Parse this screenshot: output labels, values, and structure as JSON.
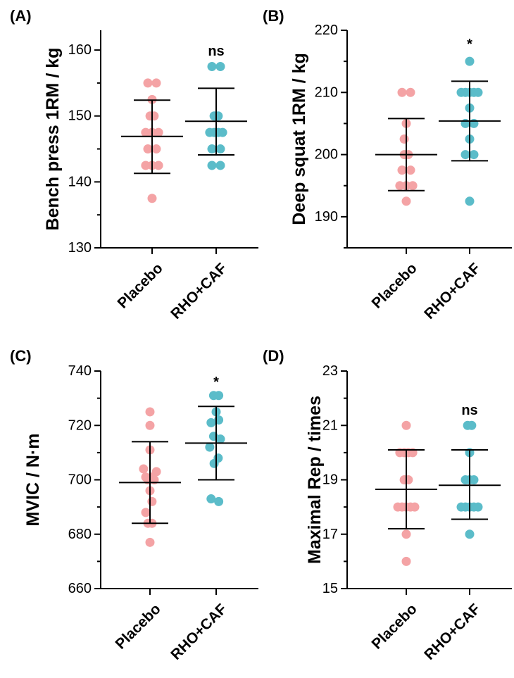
{
  "colors": {
    "placebo": "#F4A3A5",
    "rho_caf": "#5BBCC9",
    "axis": "#000000"
  },
  "chart_data": [
    {
      "id": "A",
      "type": "scatter",
      "panel_label": "(A)",
      "ylabel": "Bench press 1RM / kg",
      "ylim": [
        130,
        163
      ],
      "yticks": [
        130,
        140,
        150,
        160
      ],
      "categories": [
        "Placebo",
        "RHO+CAF"
      ],
      "significance": "ns",
      "series": [
        {
          "name": "Placebo",
          "mean": 146.9,
          "sd_low": 141.3,
          "sd_high": 152.4,
          "points": [
            [
              -0.25,
              155
            ],
            [
              0.25,
              155
            ],
            [
              0,
              152.5
            ],
            [
              -0.12,
              150
            ],
            [
              0.12,
              150
            ],
            [
              -0.38,
              147.5
            ],
            [
              0,
              147.5
            ],
            [
              0.38,
              147.5
            ],
            [
              -0.25,
              145
            ],
            [
              0.25,
              145
            ],
            [
              -0.38,
              142.5
            ],
            [
              0,
              142.5
            ],
            [
              0.38,
              142.5
            ],
            [
              0,
              137.5
            ]
          ]
        },
        {
          "name": "RHO+CAF",
          "mean": 149.2,
          "sd_low": 144.1,
          "sd_high": 154.2,
          "points": [
            [
              -0.25,
              157.5
            ],
            [
              0.25,
              157.5
            ],
            [
              0,
              150
            ],
            [
              -0.12,
              150
            ],
            [
              0.12,
              150
            ],
            [
              -0.38,
              147.5
            ],
            [
              -0.12,
              147.5
            ],
            [
              0.12,
              147.5
            ],
            [
              0.38,
              147.5
            ],
            [
              -0.25,
              145
            ],
            [
              0.25,
              145
            ],
            [
              -0.25,
              142.5
            ],
            [
              0.25,
              142.5
            ]
          ]
        }
      ]
    },
    {
      "id": "B",
      "type": "scatter",
      "panel_label": "(B)",
      "ylabel": "Deep squat 1RM / kg",
      "ylim": [
        185,
        220
      ],
      "yticks": [
        190,
        200,
        210,
        220
      ],
      "categories": [
        "Placebo",
        "RHO+CAF"
      ],
      "significance": "*",
      "series": [
        {
          "name": "Placebo",
          "mean": 200,
          "sd_low": 194.2,
          "sd_high": 205.8,
          "points": [
            [
              -0.25,
              210
            ],
            [
              0.25,
              210
            ],
            [
              0,
              205
            ],
            [
              -0.12,
              202.5
            ],
            [
              0.12,
              200
            ],
            [
              -0.12,
              200
            ],
            [
              -0.25,
              197.5
            ],
            [
              0.25,
              197.5
            ],
            [
              -0.38,
              195
            ],
            [
              0,
              195
            ],
            [
              0.38,
              195
            ],
            [
              0,
              192.5
            ]
          ]
        },
        {
          "name": "RHO+CAF",
          "mean": 205.4,
          "sd_low": 199,
          "sd_high": 211.8,
          "points": [
            [
              0,
              215
            ],
            [
              -0.5,
              210
            ],
            [
              -0.25,
              210
            ],
            [
              0,
              210
            ],
            [
              0.25,
              210
            ],
            [
              0.5,
              210
            ],
            [
              -0.25,
              205
            ],
            [
              0.25,
              205
            ],
            [
              0,
              207.5
            ],
            [
              0,
              202.5
            ],
            [
              -0.25,
              200
            ],
            [
              0.25,
              200
            ],
            [
              0,
              192.5
            ]
          ]
        }
      ]
    },
    {
      "id": "C",
      "type": "scatter",
      "panel_label": "(C)",
      "ylabel": "MVIC / N·m",
      "ylim": [
        660,
        740
      ],
      "yticks": [
        660,
        680,
        700,
        720,
        740
      ],
      "categories": [
        "Placebo",
        "RHO+CAF"
      ],
      "significance": "*",
      "series": [
        {
          "name": "Placebo",
          "mean": 699,
          "sd_low": 684,
          "sd_high": 714,
          "points": [
            [
              0,
              725
            ],
            [
              0,
              720
            ],
            [
              0,
              711
            ],
            [
              -0.38,
              704
            ],
            [
              0.38,
              703
            ],
            [
              -0.25,
              701
            ],
            [
              0.12,
              701
            ],
            [
              -0.12,
              700
            ],
            [
              0.25,
              700
            ],
            [
              0,
              696
            ],
            [
              0.12,
              692
            ],
            [
              -0.25,
              688
            ],
            [
              -0.12,
              684
            ],
            [
              0.12,
              684
            ],
            [
              0,
              677
            ]
          ]
        },
        {
          "name": "RHO+CAF",
          "mean": 713.5,
          "sd_low": 700,
          "sd_high": 727,
          "points": [
            [
              -0.15,
              731
            ],
            [
              0.15,
              731
            ],
            [
              0,
              725
            ],
            [
              -0.3,
              721
            ],
            [
              0.15,
              722
            ],
            [
              -0.15,
              716
            ],
            [
              0.25,
              715
            ],
            [
              -0.38,
              712
            ],
            [
              0.12,
              708
            ],
            [
              -0.12,
              706
            ],
            [
              -0.3,
              693
            ],
            [
              0.15,
              692
            ]
          ]
        }
      ]
    },
    {
      "id": "D",
      "type": "scatter",
      "panel_label": "(D)",
      "ylabel": "Maximal Rep / times",
      "ylim": [
        15,
        23
      ],
      "yticks": [
        15,
        17,
        19,
        21,
        23
      ],
      "categories": [
        "Placebo",
        "RHO+CAF"
      ],
      "significance": "ns",
      "series": [
        {
          "name": "Placebo",
          "mean": 18.65,
          "sd_low": 17.2,
          "sd_high": 20.1,
          "points": [
            [
              0,
              21
            ],
            [
              -0.38,
              20
            ],
            [
              -0.12,
              20
            ],
            [
              0.12,
              20
            ],
            [
              0.38,
              20
            ],
            [
              -0.12,
              19
            ],
            [
              0.12,
              19
            ],
            [
              -0.5,
              18
            ],
            [
              -0.25,
              18
            ],
            [
              0,
              18
            ],
            [
              0.25,
              18
            ],
            [
              0.5,
              18
            ],
            [
              0,
              17
            ],
            [
              0,
              16
            ]
          ]
        },
        {
          "name": "RHO+CAF",
          "mean": 18.8,
          "sd_low": 17.55,
          "sd_high": 20.1,
          "points": [
            [
              -0.12,
              21
            ],
            [
              0.12,
              21
            ],
            [
              0,
              20
            ],
            [
              -0.25,
              19
            ],
            [
              0,
              19
            ],
            [
              0.25,
              19
            ],
            [
              -0.5,
              18
            ],
            [
              -0.25,
              18
            ],
            [
              0,
              18
            ],
            [
              0.25,
              18
            ],
            [
              0.5,
              18
            ],
            [
              0,
              17
            ]
          ]
        }
      ]
    }
  ]
}
